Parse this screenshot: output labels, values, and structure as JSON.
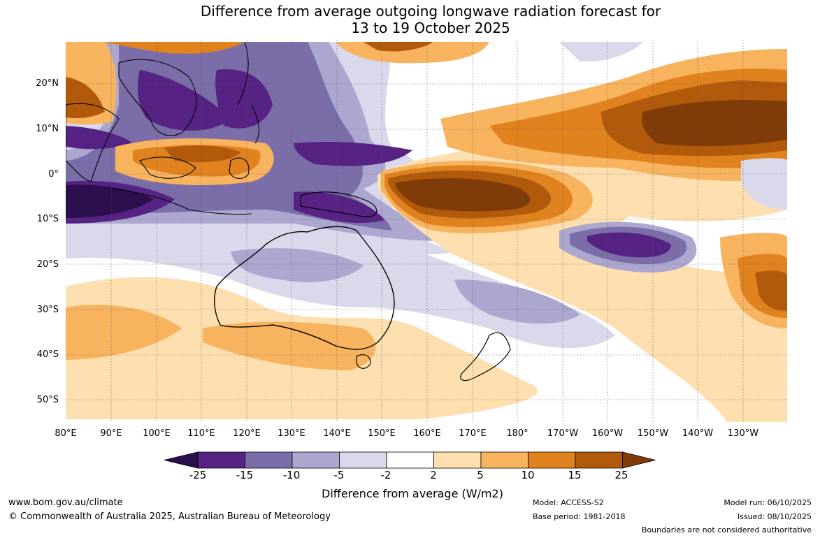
{
  "title": {
    "line1": "Difference from average outgoing longwave radiation forecast for",
    "line2": "13 to 19 October 2025"
  },
  "map": {
    "region": "Australia and western Pacific",
    "lat_labels": [
      "20°N",
      "10°N",
      "0°",
      "10°S",
      "20°S",
      "30°S",
      "40°S",
      "50°S"
    ],
    "lon_labels": [
      "80°E",
      "90°E",
      "100°E",
      "110°E",
      "120°E",
      "130°E",
      "140°E",
      "150°E",
      "160°E",
      "170°E",
      "180°",
      "170°W",
      "160°W",
      "150°W",
      "140°W",
      "130°W"
    ]
  },
  "colorbar": {
    "tick_labels": [
      "-25",
      "-15",
      "-10",
      "-5",
      "-2",
      "2",
      "5",
      "10",
      "15",
      "25"
    ],
    "title": "Difference from average (W/m2)",
    "colors": [
      "#2c0f4f",
      "#562384",
      "#7b6ea8",
      "#aba7cf",
      "#d9d9eb",
      "#ffffff",
      "#fedfb0",
      "#f8b35f",
      "#e0821e",
      "#b25a0c",
      "#7f3b08"
    ]
  },
  "footer": {
    "website": "www.bom.gov.au/climate",
    "copyright": "© Commonwealth of Australia 2025, Australian Bureau of Meteorology",
    "model": "Model: ACCESS-S2",
    "base_period": "Base period: 1981-2018",
    "model_run": "Model run: 06/10/2025",
    "issued": "Issued: 08/10/2025",
    "disclaimer": "Boundaries are not considered authoritative"
  }
}
